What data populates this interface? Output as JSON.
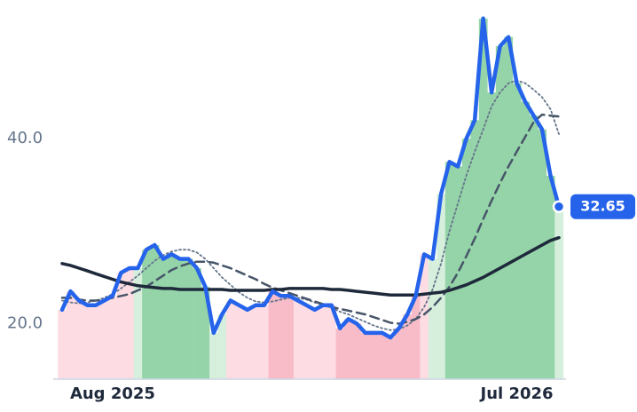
{
  "chart_data": {
    "type": "line",
    "categories": [
      null,
      null,
      null,
      null,
      null,
      null,
      "Aug 2025",
      null,
      null,
      null,
      null,
      null,
      null,
      null,
      null,
      null,
      null,
      null,
      null,
      null,
      null,
      null,
      null,
      null,
      null,
      null,
      null,
      null,
      null,
      null,
      null,
      null,
      null,
      null,
      null,
      null,
      null,
      null,
      null,
      null,
      null,
      null,
      null,
      null,
      null,
      null,
      null,
      null,
      null,
      null,
      null,
      null,
      null,
      null,
      "Jul 2026",
      null,
      null,
      null,
      null,
      null
    ],
    "series": [
      {
        "color": "#2563eb",
        "style": "solid",
        "width": 4.5,
        "values": [
          21.5,
          23.5,
          22.5,
          22,
          22,
          22.5,
          23,
          25.5,
          26,
          26,
          28,
          28.5,
          27,
          27.5,
          27,
          27,
          26,
          24,
          19,
          21,
          22.5,
          22,
          21.5,
          22,
          22,
          23.5,
          23,
          23,
          22.5,
          22,
          21.5,
          22,
          22,
          19.5,
          20.5,
          20,
          19,
          19,
          19,
          18.5,
          19.5,
          21,
          23,
          27.5,
          27,
          34,
          37.5,
          37,
          40,
          42,
          53,
          45,
          50,
          51,
          46,
          44,
          42.5,
          41,
          36,
          32.65
        ]
      },
      {
        "color": "#1e293b",
        "style": "solid",
        "width": 3.5,
        "values": [
          26.5,
          26.3,
          26,
          25.7,
          25.4,
          25.1,
          24.8,
          24.5,
          24.3,
          24.1,
          24,
          23.9,
          23.8,
          23.8,
          23.7,
          23.7,
          23.7,
          23.7,
          23.7,
          23.7,
          23.6,
          23.6,
          23.6,
          23.6,
          23.6,
          23.7,
          23.7,
          23.8,
          23.8,
          23.8,
          23.8,
          23.8,
          23.7,
          23.7,
          23.6,
          23.5,
          23.4,
          23.3,
          23.2,
          23.1,
          23.1,
          23.1,
          23.1,
          23.2,
          23.3,
          23.4,
          23.6,
          23.9,
          24.2,
          24.6,
          25,
          25.5,
          26,
          26.5,
          27,
          27.5,
          28,
          28.5,
          29,
          29.3
        ]
      },
      {
        "color": "#475569",
        "style": "dashed",
        "width": 2.5,
        "values": [
          22.8,
          22.8,
          22.6,
          22.5,
          22.5,
          22.6,
          22.8,
          23,
          23.2,
          23.6,
          24,
          24.6,
          25.2,
          25.8,
          26.2,
          26.5,
          26.7,
          26.7,
          26.6,
          26.3,
          26,
          25.6,
          25.2,
          24.8,
          24.3,
          23.9,
          23.6,
          23.3,
          23,
          22.7,
          22.4,
          22.1,
          21.8,
          21.6,
          21.4,
          21.2,
          21,
          20.7,
          20.4,
          20.1,
          20,
          20.2,
          20.5,
          21,
          21.8,
          22.8,
          24,
          25.5,
          27.3,
          29.2,
          31.3,
          33.3,
          35.2,
          37,
          38.6,
          40.2,
          41.8,
          42.6,
          42.5,
          42.4
        ]
      },
      {
        "color": "#64748b",
        "style": "dotted",
        "width": 1.8,
        "values": [
          22.5,
          22.3,
          22.2,
          22.3,
          22.5,
          22.8,
          23.2,
          23.8,
          24.5,
          25.2,
          26,
          26.8,
          27.4,
          27.8,
          28,
          28,
          27.7,
          27,
          26,
          25,
          24.2,
          23.4,
          22.8,
          22.4,
          22.3,
          22.4,
          22.6,
          22.8,
          22.8,
          22.6,
          22.3,
          22,
          21.7,
          21.3,
          21,
          20.6,
          20.2,
          19.8,
          19.5,
          19.3,
          19.4,
          19.8,
          20.5,
          21.8,
          23.7,
          26.5,
          30,
          33,
          36,
          38.6,
          41,
          43.5,
          45,
          46,
          46.3,
          46,
          45.3,
          44.5,
          43.2,
          40.5
        ]
      }
    ],
    "bar_colors": [
      "#fddde3",
      "#fddde3",
      "#fddde3",
      "#fddde3",
      "#fddde3",
      "#fddde3",
      "#fddde3",
      "#fddde3",
      "#fddde3",
      "#d5efdc",
      "#95d4a8",
      "#95d4a8",
      "#95d4a8",
      "#95d4a8",
      "#95d4a8",
      "#95d4a8",
      "#95d4a8",
      "#95d4a8",
      "#d5efdc",
      "#d5efdc",
      "#fddde3",
      "#fddde3",
      "#fddde3",
      "#fddde3",
      "#fddde3",
      "#f8bcc9",
      "#f8bcc9",
      "#f8bcc9",
      "#fddde3",
      "#fddde3",
      "#fddde3",
      "#fddde3",
      "#fddde3",
      "#f8bcc9",
      "#f8bcc9",
      "#f8bcc9",
      "#f8bcc9",
      "#f8bcc9",
      "#f8bcc9",
      "#f8bcc9",
      "#f8bcc9",
      "#f8bcc9",
      "#f8bcc9",
      "#fddde3",
      "#d5efdc",
      "#d5efdc",
      "#95d4a8",
      "#95d4a8",
      "#95d4a8",
      "#95d4a8",
      "#95d4a8",
      "#95d4a8",
      "#95d4a8",
      "#95d4a8",
      "#95d4a8",
      "#95d4a8",
      "#95d4a8",
      "#95d4a8",
      "#95d4a8",
      "#d5efdc"
    ],
    "ylim": [
      14,
      55
    ],
    "yticks": [
      {
        "value": 20,
        "label": "20.0"
      },
      {
        "value": 40,
        "label": "40.0"
      }
    ]
  }
}
